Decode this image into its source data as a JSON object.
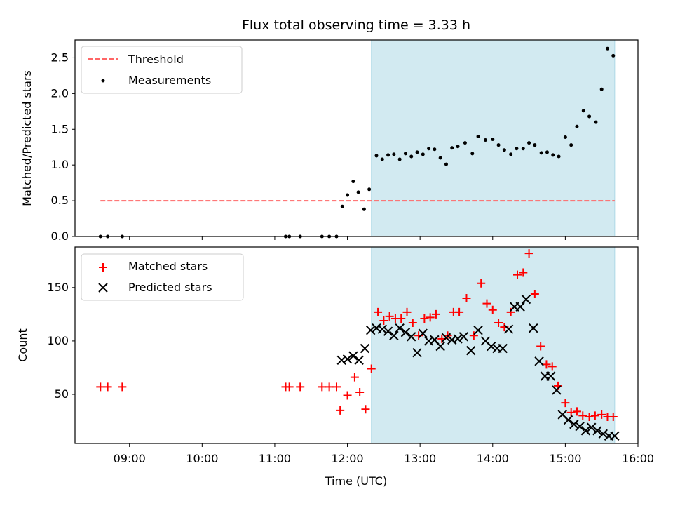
{
  "chart_data": {
    "title": "Flux total observing time = 3.33 h",
    "xlabel": "Time (UTC)",
    "xlim_hours": [
      8.25,
      16.0
    ],
    "x_ticks": [
      {
        "h": 9,
        "label": "09:00"
      },
      {
        "h": 10,
        "label": "10:00"
      },
      {
        "h": 11,
        "label": "11:00"
      },
      {
        "h": 12,
        "label": "12:00"
      },
      {
        "h": 13,
        "label": "13:00"
      },
      {
        "h": 14,
        "label": "14:00"
      },
      {
        "h": 15,
        "label": "15:00"
      },
      {
        "h": 16,
        "label": "16:00"
      }
    ],
    "highlight_span_hours": [
      12.33,
      15.68
    ],
    "colors": {
      "highlight": "#add8e6",
      "threshold": "#ff6666",
      "matched": "#ff0000",
      "predicted": "#000000",
      "measurement": "#000000"
    },
    "top": {
      "type": "scatter",
      "ylabel": "Matched/Predicted stars",
      "ylim": [
        0,
        2.75
      ],
      "yticks": [
        0.0,
        0.5,
        1.0,
        1.5,
        2.0,
        2.5
      ],
      "ytick_labels": [
        "0.0",
        "0.5",
        "1.0",
        "1.5",
        "2.0",
        "2.5"
      ],
      "threshold": {
        "name": "Threshold",
        "value": 0.5,
        "x_range": [
          8.6,
          15.68
        ]
      },
      "measurements": {
        "name": "Measurements",
        "points": [
          [
            8.6,
            0
          ],
          [
            8.7,
            0
          ],
          [
            8.9,
            0
          ],
          [
            11.15,
            0
          ],
          [
            11.2,
            0
          ],
          [
            11.35,
            0
          ],
          [
            11.65,
            0
          ],
          [
            11.75,
            0
          ],
          [
            11.85,
            0
          ],
          [
            11.93,
            0.42
          ],
          [
            12.0,
            0.58
          ],
          [
            12.08,
            0.77
          ],
          [
            12.15,
            0.62
          ],
          [
            12.23,
            0.38
          ],
          [
            12.3,
            0.66
          ],
          [
            12.4,
            1.13
          ],
          [
            12.48,
            1.08
          ],
          [
            12.56,
            1.14
          ],
          [
            12.64,
            1.15
          ],
          [
            12.72,
            1.08
          ],
          [
            12.8,
            1.16
          ],
          [
            12.88,
            1.12
          ],
          [
            12.96,
            1.18
          ],
          [
            13.04,
            1.15
          ],
          [
            13.12,
            1.23
          ],
          [
            13.2,
            1.22
          ],
          [
            13.28,
            1.1
          ],
          [
            13.36,
            1.01
          ],
          [
            13.44,
            1.24
          ],
          [
            13.52,
            1.26
          ],
          [
            13.62,
            1.31
          ],
          [
            13.72,
            1.16
          ],
          [
            13.8,
            1.4
          ],
          [
            13.9,
            1.35
          ],
          [
            14.0,
            1.36
          ],
          [
            14.08,
            1.28
          ],
          [
            14.16,
            1.21
          ],
          [
            14.25,
            1.15
          ],
          [
            14.33,
            1.23
          ],
          [
            14.42,
            1.23
          ],
          [
            14.5,
            1.31
          ],
          [
            14.58,
            1.28
          ],
          [
            14.67,
            1.17
          ],
          [
            14.75,
            1.18
          ],
          [
            14.83,
            1.14
          ],
          [
            14.91,
            1.12
          ],
          [
            15.0,
            1.39
          ],
          [
            15.08,
            1.28
          ],
          [
            15.16,
            1.54
          ],
          [
            15.25,
            1.76
          ],
          [
            15.33,
            1.68
          ],
          [
            15.42,
            1.6
          ],
          [
            15.5,
            2.06
          ],
          [
            15.58,
            2.63
          ],
          [
            15.66,
            2.53
          ]
        ]
      }
    },
    "bottom": {
      "type": "scatter",
      "ylabel": "Count",
      "ylim": [
        4,
        188
      ],
      "yticks": [
        50,
        100,
        150
      ],
      "ytick_labels": [
        "50",
        "100",
        "150"
      ],
      "matched": {
        "name": "Matched stars",
        "points": [
          [
            8.6,
            57
          ],
          [
            8.7,
            57
          ],
          [
            8.9,
            57
          ],
          [
            11.15,
            57
          ],
          [
            11.2,
            57
          ],
          [
            11.35,
            57
          ],
          [
            11.65,
            57
          ],
          [
            11.75,
            57
          ],
          [
            11.85,
            57
          ],
          [
            11.9,
            35
          ],
          [
            12.0,
            49
          ],
          [
            12.1,
            66
          ],
          [
            12.17,
            52
          ],
          [
            12.25,
            36
          ],
          [
            12.33,
            74
          ],
          [
            12.42,
            127
          ],
          [
            12.5,
            119
          ],
          [
            12.58,
            123
          ],
          [
            12.66,
            121
          ],
          [
            12.74,
            121
          ],
          [
            12.82,
            127
          ],
          [
            12.9,
            117
          ],
          [
            12.98,
            105
          ],
          [
            13.06,
            121
          ],
          [
            13.14,
            122
          ],
          [
            13.22,
            125
          ],
          [
            13.3,
            102
          ],
          [
            13.38,
            105
          ],
          [
            13.46,
            127
          ],
          [
            13.54,
            127
          ],
          [
            13.64,
            140
          ],
          [
            13.74,
            105
          ],
          [
            13.84,
            154
          ],
          [
            13.92,
            135
          ],
          [
            14.0,
            129
          ],
          [
            14.08,
            117
          ],
          [
            14.16,
            113
          ],
          [
            14.25,
            127
          ],
          [
            14.34,
            162
          ],
          [
            14.42,
            164
          ],
          [
            14.5,
            182
          ],
          [
            14.58,
            144
          ],
          [
            14.66,
            95
          ],
          [
            14.74,
            78
          ],
          [
            14.82,
            76
          ],
          [
            14.9,
            58
          ],
          [
            15.0,
            42
          ],
          [
            15.08,
            33
          ],
          [
            15.16,
            34
          ],
          [
            15.24,
            30
          ],
          [
            15.33,
            29
          ],
          [
            15.41,
            30
          ],
          [
            15.5,
            31
          ],
          [
            15.58,
            29
          ],
          [
            15.66,
            29
          ]
        ]
      },
      "predicted": {
        "name": "Predicted stars",
        "points": [
          [
            11.92,
            82
          ],
          [
            12.0,
            83
          ],
          [
            12.08,
            86
          ],
          [
            12.16,
            82
          ],
          [
            12.24,
            93
          ],
          [
            12.32,
            110
          ],
          [
            12.4,
            112
          ],
          [
            12.48,
            111
          ],
          [
            12.56,
            109
          ],
          [
            12.64,
            105
          ],
          [
            12.72,
            112
          ],
          [
            12.8,
            108
          ],
          [
            12.88,
            104
          ],
          [
            12.96,
            89
          ],
          [
            13.04,
            107
          ],
          [
            13.12,
            100
          ],
          [
            13.2,
            101
          ],
          [
            13.28,
            95
          ],
          [
            13.36,
            103
          ],
          [
            13.44,
            101
          ],
          [
            13.52,
            102
          ],
          [
            13.6,
            104
          ],
          [
            13.7,
            91
          ],
          [
            13.8,
            110
          ],
          [
            13.9,
            100
          ],
          [
            13.98,
            95
          ],
          [
            14.06,
            93
          ],
          [
            14.14,
            93
          ],
          [
            14.22,
            111
          ],
          [
            14.3,
            132
          ],
          [
            14.38,
            132
          ],
          [
            14.46,
            139
          ],
          [
            14.56,
            112
          ],
          [
            14.64,
            81
          ],
          [
            14.72,
            67
          ],
          [
            14.8,
            67
          ],
          [
            14.88,
            54
          ],
          [
            14.96,
            31
          ],
          [
            15.04,
            26
          ],
          [
            15.12,
            22
          ],
          [
            15.2,
            20
          ],
          [
            15.28,
            16
          ],
          [
            15.36,
            19
          ],
          [
            15.44,
            16
          ],
          [
            15.52,
            13
          ],
          [
            15.6,
            11
          ],
          [
            15.68,
            11
          ]
        ]
      }
    }
  }
}
